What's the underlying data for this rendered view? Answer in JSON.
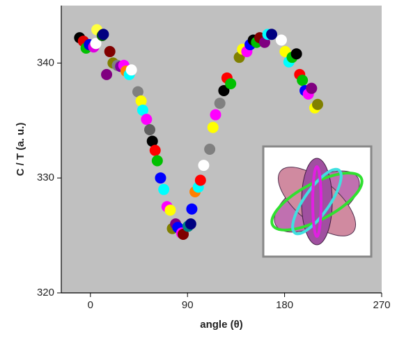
{
  "chart_data": {
    "type": "scatter",
    "xlabel": "angle (θ)",
    "ylabel": "C / T (a. u.)",
    "xlim": [
      -27,
      270
    ],
    "ylim": [
      320,
      345
    ],
    "xticks": [
      0,
      90,
      180,
      270
    ],
    "yticks": [
      320,
      330,
      340
    ],
    "x": [
      -10,
      -6.5,
      -4,
      -1,
      3,
      6,
      5,
      11,
      12,
      15,
      18,
      21,
      25,
      28,
      31,
      33,
      36,
      38,
      44,
      47,
      48.5,
      52,
      55,
      57.4,
      60,
      62,
      65,
      68,
      71,
      74,
      76,
      79,
      81,
      84.6,
      86,
      90.5,
      93,
      94,
      97,
      100,
      102,
      105,
      110.6,
      113.6,
      116,
      120,
      123.7,
      126.6,
      130,
      138,
      141,
      145,
      148,
      151,
      154,
      157,
      161.5,
      164.5,
      168,
      177,
      180.5,
      184,
      187,
      191,
      194,
      196.5,
      199,
      202,
      205,
      208,
      210.6
    ],
    "y": [
      342.2,
      341.9,
      341.3,
      341.6,
      341.4,
      342.9,
      341.7,
      342.4,
      342.5,
      339.0,
      341.0,
      340.0,
      339.8,
      339.7,
      339.8,
      339.3,
      339.0,
      339.4,
      337.5,
      336.7,
      335.9,
      335.1,
      334.2,
      333.2,
      332.4,
      331.5,
      330.0,
      329.0,
      327.5,
      327.2,
      325.6,
      326.0,
      325.7,
      325.2,
      325.1,
      325.8,
      326.0,
      327.3,
      328.8,
      329.2,
      329.8,
      331.1,
      332.5,
      334.4,
      335.5,
      336.5,
      337.6,
      338.7,
      338.2,
      340.5,
      341.2,
      341.0,
      341.6,
      342.0,
      341.8,
      342.2,
      341.8,
      342.5,
      342.5,
      342.0,
      341.0,
      340.1,
      340.5,
      340.8,
      339.0,
      338.5,
      337.6,
      337.3,
      337.8,
      336.1,
      336.4
    ],
    "colors": [
      "#000000",
      "#e00000",
      "#00c000",
      "#0000e0",
      "#e000e0",
      "#ffff40",
      "#ffffff",
      "#006000",
      "#000080",
      "#800080",
      "#800000",
      "#808000",
      "#808080",
      "#8000a0",
      "#ff00ff",
      "#ff8000",
      "#00ffff",
      "#ffffff",
      "#808080",
      "#ffff00",
      "#00ffff",
      "#ff00ff",
      "#606060",
      "#000000",
      "#ff0000",
      "#00c000",
      "#0000ff",
      "#00ffff",
      "#ff00ff",
      "#ffff00",
      "#808000",
      "#800080",
      "#0000ff",
      "#ff00ff",
      "#800000",
      "#008080",
      "#000080",
      "#0000ff",
      "#ff8000",
      "#00ffff",
      "#ff0000",
      "#ffffff",
      "#808080",
      "#ffff00",
      "#ff00ff",
      "#808080",
      "#000000",
      "#ff0000",
      "#00c000",
      "#808000",
      "#ffff00",
      "#ff00ff",
      "#0000ff",
      "#000000",
      "#00c000",
      "#800000",
      "#800080",
      "#00ffff",
      "#000080",
      "#ffffff",
      "#ffff00",
      "#00ffff",
      "#00c000",
      "#000000",
      "#ff0000",
      "#00c000",
      "#0000ff",
      "#ff00ff",
      "#800080",
      "#ffff00",
      "#808000"
    ]
  }
}
